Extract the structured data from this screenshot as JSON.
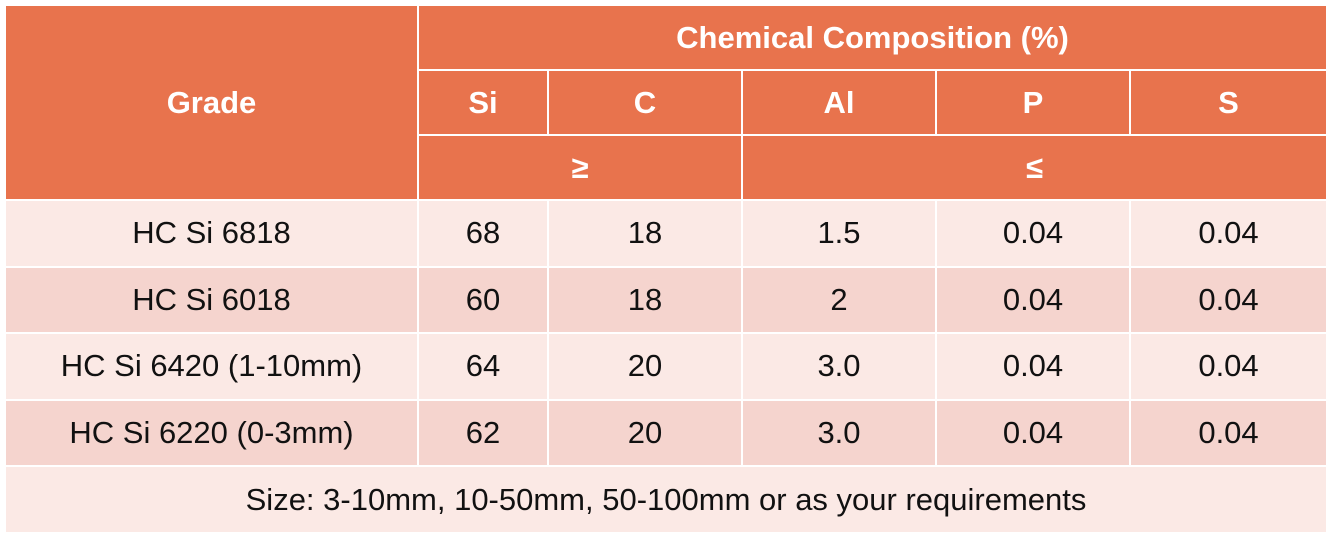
{
  "header": {
    "grade": "Grade",
    "group": "Chemical Composition (%)",
    "elements": [
      "Si",
      "C",
      "Al",
      "P",
      "S"
    ],
    "limit_min": "≥",
    "limit_max": "≤"
  },
  "rows": [
    {
      "grade": "HC Si 6818",
      "si": "68",
      "c": "18",
      "al": "1.5",
      "p": "0.04",
      "s": "0.04"
    },
    {
      "grade": "HC Si 6018",
      "si": "60",
      "c": "18",
      "al": "2",
      "p": "0.04",
      "s": "0.04"
    },
    {
      "grade": "HC Si 6420 (1-10mm)",
      "si": "64",
      "c": "20",
      "al": "3.0",
      "p": "0.04",
      "s": "0.04"
    },
    {
      "grade": "HC Si 6220 (0-3mm)",
      "si": "62",
      "c": "20",
      "al": "3.0",
      "p": "0.04",
      "s": "0.04"
    }
  ],
  "footer": "Size: 3-10mm, 10-50mm, 50-100mm or as your requirements",
  "colors": {
    "header_bg": "#e8734d",
    "row_light": "#fbe9e5",
    "row_dark": "#f5d4ce"
  }
}
